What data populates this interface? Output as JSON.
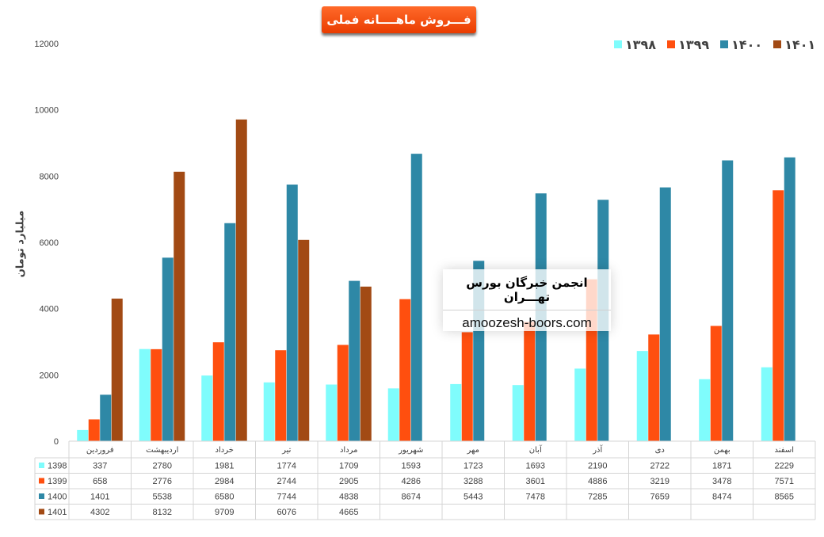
{
  "chart_data": {
    "type": "bar",
    "title": "فـــروش ماهــــانه فملی",
    "ylabel": "میلیارد تومان",
    "ylim": [
      0,
      12000
    ],
    "yticks": [
      0,
      2000,
      4000,
      6000,
      8000,
      10000,
      12000
    ],
    "categories": [
      "فروردین",
      "اردیبهشت",
      "خرداد",
      "تیر",
      "مرداد",
      "شهریور",
      "مهر",
      "آبان",
      "آذر",
      "دی",
      "بهمن",
      "اسفند"
    ],
    "series": [
      {
        "name": "1398",
        "legend_label": "۱۳۹۸",
        "color": "#7ffcfc",
        "values": [
          337,
          2780,
          1981,
          1774,
          1709,
          1593,
          1723,
          1693,
          2190,
          2722,
          1871,
          2229
        ]
      },
      {
        "name": "1399",
        "legend_label": "۱۳۹۹",
        "color": "#ff4f0f",
        "values": [
          658,
          2776,
          2984,
          2744,
          2905,
          4286,
          3288,
          3601,
          4886,
          3219,
          3478,
          7571
        ]
      },
      {
        "name": "1400",
        "legend_label": "۱۴۰۰",
        "color": "#2e88a6",
        "values": [
          1401,
          5538,
          6580,
          7744,
          4838,
          8674,
          5443,
          7478,
          7285,
          7659,
          8474,
          8565
        ]
      },
      {
        "name": "1401",
        "legend_label": "۱۴۰۱",
        "color": "#a24a14",
        "values": [
          4302,
          8132,
          9709,
          6076,
          4665,
          null,
          null,
          null,
          null,
          null,
          null,
          null
        ]
      }
    ],
    "grid": false,
    "legend_position": "top-right",
    "data_table": true
  },
  "watermark": {
    "title": "انجمن خبرگان بورس تهـــران",
    "url": "amoozesh-boors.com"
  }
}
